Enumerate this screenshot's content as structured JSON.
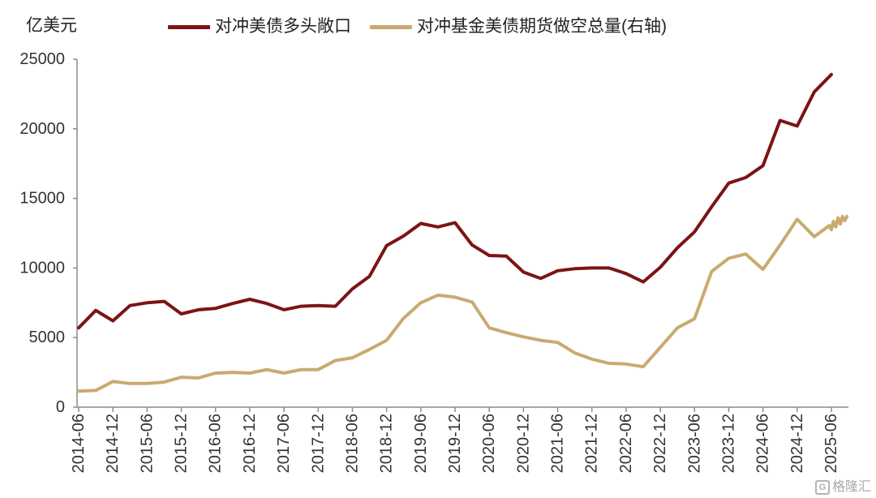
{
  "chart_data": {
    "type": "line",
    "title": "",
    "xlabel": "",
    "ylabel": "亿美元",
    "ylim": [
      0,
      25000
    ],
    "yticks": [
      0,
      5000,
      10000,
      15000,
      20000,
      25000
    ],
    "xlim": [
      "2014-06",
      "2025-09"
    ],
    "xticks": [
      "2014-06",
      "2014-12",
      "2015-06",
      "2015-12",
      "2016-06",
      "2016-12",
      "2017-06",
      "2017-12",
      "2018-06",
      "2018-12",
      "2019-06",
      "2019-12",
      "2020-06",
      "2020-12",
      "2021-06",
      "2021-12",
      "2022-06",
      "2022-12",
      "2023-06",
      "2023-12",
      "2024-06",
      "2024-12",
      "2025-06"
    ],
    "grid": false,
    "legend": "top",
    "series": [
      {
        "name": "对冲美债多头敞口",
        "color": "#7B1416",
        "points": [
          [
            "2014-06",
            5700
          ],
          [
            "2014-09",
            6950
          ],
          [
            "2014-12",
            6200
          ],
          [
            "2015-03",
            7300
          ],
          [
            "2015-06",
            7500
          ],
          [
            "2015-09",
            7600
          ],
          [
            "2015-12",
            6700
          ],
          [
            "2016-03",
            7000
          ],
          [
            "2016-06",
            7100
          ],
          [
            "2016-09",
            7450
          ],
          [
            "2016-12",
            7750
          ],
          [
            "2017-03",
            7450
          ],
          [
            "2017-06",
            7000
          ],
          [
            "2017-09",
            7250
          ],
          [
            "2017-12",
            7300
          ],
          [
            "2018-03",
            7250
          ],
          [
            "2018-06",
            8500
          ],
          [
            "2018-09",
            9400
          ],
          [
            "2018-12",
            11600
          ],
          [
            "2019-03",
            12300
          ],
          [
            "2019-06",
            13200
          ],
          [
            "2019-09",
            12950
          ],
          [
            "2019-12",
            13250
          ],
          [
            "2020-03",
            11650
          ],
          [
            "2020-06",
            10900
          ],
          [
            "2020-09",
            10850
          ],
          [
            "2020-12",
            9700
          ],
          [
            "2021-03",
            9250
          ],
          [
            "2021-06",
            9800
          ],
          [
            "2021-09",
            9950
          ],
          [
            "2021-12",
            10000
          ],
          [
            "2022-03",
            10000
          ],
          [
            "2022-06",
            9600
          ],
          [
            "2022-09",
            9000
          ],
          [
            "2022-12",
            10050
          ],
          [
            "2023-03",
            11450
          ],
          [
            "2023-06",
            12600
          ],
          [
            "2023-09",
            14400
          ],
          [
            "2023-12",
            16100
          ],
          [
            "2024-03",
            16500
          ],
          [
            "2024-06",
            17350
          ],
          [
            "2024-09",
            20600
          ],
          [
            "2024-12",
            20200
          ],
          [
            "2025-03",
            22650
          ],
          [
            "2025-06",
            23900
          ]
        ]
      },
      {
        "name": "对冲基金美债期货做空总量(右轴)",
        "color": "#C9AA70",
        "points": [
          [
            "2014-06",
            1150
          ],
          [
            "2014-09",
            1200
          ],
          [
            "2014-12",
            1850
          ],
          [
            "2015-03",
            1700
          ],
          [
            "2015-06",
            1700
          ],
          [
            "2015-09",
            1800
          ],
          [
            "2015-12",
            2150
          ],
          [
            "2016-03",
            2100
          ],
          [
            "2016-06",
            2450
          ],
          [
            "2016-09",
            2500
          ],
          [
            "2016-12",
            2450
          ],
          [
            "2017-03",
            2700
          ],
          [
            "2017-06",
            2450
          ],
          [
            "2017-09",
            2700
          ],
          [
            "2017-12",
            2700
          ],
          [
            "2018-03",
            3350
          ],
          [
            "2018-06",
            3550
          ],
          [
            "2018-09",
            4150
          ],
          [
            "2018-12",
            4800
          ],
          [
            "2019-03",
            6400
          ],
          [
            "2019-06",
            7500
          ],
          [
            "2019-09",
            8050
          ],
          [
            "2019-12",
            7900
          ],
          [
            "2020-03",
            7550
          ],
          [
            "2020-06",
            5700
          ],
          [
            "2020-09",
            5350
          ],
          [
            "2020-12",
            5050
          ],
          [
            "2021-03",
            4800
          ],
          [
            "2021-06",
            4650
          ],
          [
            "2021-09",
            3900
          ],
          [
            "2021-12",
            3450
          ],
          [
            "2022-03",
            3150
          ],
          [
            "2022-06",
            3100
          ],
          [
            "2022-09",
            2900
          ],
          [
            "2022-12",
            4300
          ],
          [
            "2023-03",
            5700
          ],
          [
            "2023-06",
            6350
          ],
          [
            "2023-09",
            9750
          ],
          [
            "2023-12",
            10700
          ],
          [
            "2024-03",
            11000
          ],
          [
            "2024-06",
            9900
          ],
          [
            "2024-09",
            11650
          ],
          [
            "2024-12",
            13500
          ],
          [
            "2025-03",
            12250
          ],
          [
            "2025-05-20",
            13050
          ],
          [
            "2025-06-01",
            12750
          ],
          [
            "2025-06-12",
            13350
          ],
          [
            "2025-06-24",
            12950
          ],
          [
            "2025-07-06",
            13600
          ],
          [
            "2025-07-18",
            13150
          ],
          [
            "2025-07-30",
            13700
          ],
          [
            "2025-08-11",
            13400
          ],
          [
            "2025-08-23",
            13700
          ]
        ]
      }
    ]
  },
  "watermark": {
    "logo_mark": "G",
    "text": "格隆汇"
  }
}
